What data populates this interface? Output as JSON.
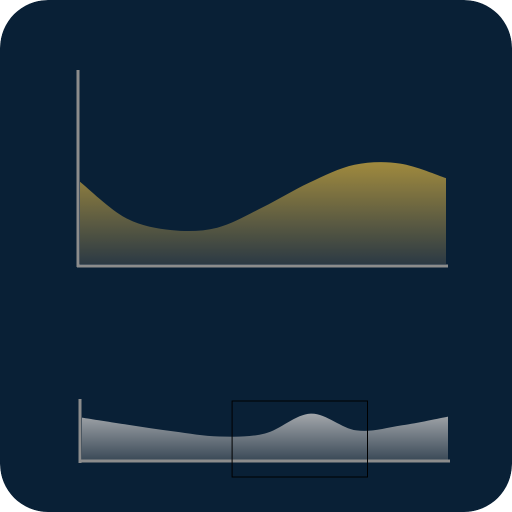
{
  "icon": {
    "semantic": "area-chart-with-range-navigator-icon",
    "colors": {
      "background": "#092036",
      "axis": "#8c8c8c",
      "main_area_top": "#a08a3e",
      "main_area_bottom": "#2c3a44",
      "navigator_area_top": "#a3a7ab",
      "navigator_area_bottom": "#3b4a58",
      "selection_window_stroke": "#000000"
    }
  },
  "chart_data": [
    {
      "type": "area",
      "series": [
        {
          "values": [
            0.68,
            0.38,
            0.28,
            0.3,
            0.47,
            0.67,
            0.82,
            0.83,
            0.71
          ]
        }
      ]
    },
    {
      "type": "area",
      "series": [
        {
          "values": [
            0.83,
            0.69,
            0.56,
            0.46,
            0.52,
            0.91,
            0.58,
            0.68,
            0.85
          ]
        }
      ],
      "selected_range": [
        0.41,
        0.78
      ]
    }
  ]
}
